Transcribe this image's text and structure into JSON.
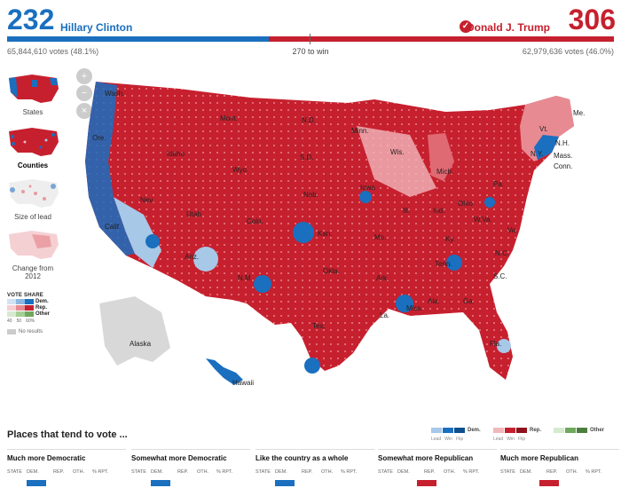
{
  "header": {
    "dem_electoral": "232",
    "dem_name": "Hillary Clinton",
    "rep_electoral": "306",
    "rep_name": "Donald J. Trump",
    "dem_votes": "65,844,610 votes (48.1%)",
    "rep_votes": "62,979,636 votes (46.0%)",
    "to_win": "270 to win",
    "dem_share_of_bar": 0.431,
    "rep_share_of_bar": 0.569
  },
  "colors": {
    "dem": "#1a6fbf",
    "rep": "#c6202e",
    "dem_light": "#a8c8e8",
    "rep_light": "#f2b7bb",
    "other": "#7fb36a",
    "no_results": "#d8d8d8"
  },
  "zoom_controls": [
    {
      "icon": "zoom-in-icon",
      "glyph": "+"
    },
    {
      "icon": "zoom-out-icon",
      "glyph": "−"
    },
    {
      "icon": "reset-icon",
      "glyph": "×"
    }
  ],
  "views": [
    {
      "label": "States",
      "active": false
    },
    {
      "label": "Counties",
      "active": true
    },
    {
      "label": "Size of lead",
      "active": false
    },
    {
      "label": "Change from 2012",
      "active": false
    }
  ],
  "legend": {
    "title": "VOTE SHARE",
    "dem": "Dem.",
    "rep": "Rep.",
    "other": "Other",
    "ticks": [
      "40",
      "50",
      "60%"
    ],
    "no_results": "No results"
  },
  "map_labels": [
    "Wash.",
    "Ore.",
    "Calif.",
    "Nev.",
    "Idaho",
    "Mont.",
    "Wyo.",
    "Utah",
    "Ariz.",
    "Colo.",
    "N.M.",
    "N.D.",
    "S.D.",
    "Neb.",
    "Kan.",
    "Okla.",
    "Tex.",
    "Minn.",
    "Iowa",
    "Mo.",
    "Ark.",
    "La.",
    "Wis.",
    "Ill.",
    "Mich.",
    "Ind.",
    "Ohio",
    "Ky.",
    "Tenn.",
    "Miss.",
    "Ala.",
    "Ga.",
    "Fla.",
    "S.C.",
    "N.C.",
    "Va.",
    "W.Va.",
    "Pa.",
    "N.Y.",
    "Vt.",
    "N.H.",
    "Me.",
    "Mass.",
    "Conn.",
    "Alaska",
    "Hawaii"
  ],
  "places": {
    "title": "Places that tend to vote ...",
    "dem_legend": "Dem.",
    "rep_legend": "Rep.",
    "other_legend": "Other",
    "sub_labels": [
      "Lead",
      "Win",
      "Flip"
    ],
    "columns": [
      {
        "title": "Much more Democratic",
        "headers": [
          "STATE",
          "DEM.",
          "REP.",
          "OTH.",
          "% RPT."
        ]
      },
      {
        "title": "Somewhat more Democratic",
        "headers": [
          "STATE",
          "DEM.",
          "REP.",
          "OTH.",
          "% RPT."
        ]
      },
      {
        "title": "Like the country as a whole",
        "headers": [
          "STATE",
          "DEM.",
          "REP.",
          "OTH.",
          "% RPT."
        ]
      },
      {
        "title": "Somewhat more Republican",
        "headers": [
          "STATE",
          "DEM.",
          "REP.",
          "OTH.",
          "% RPT."
        ]
      },
      {
        "title": "Much more Republican",
        "headers": [
          "STATE",
          "DEM.",
          "REP.",
          "OTH.",
          "% RPT."
        ]
      }
    ]
  }
}
